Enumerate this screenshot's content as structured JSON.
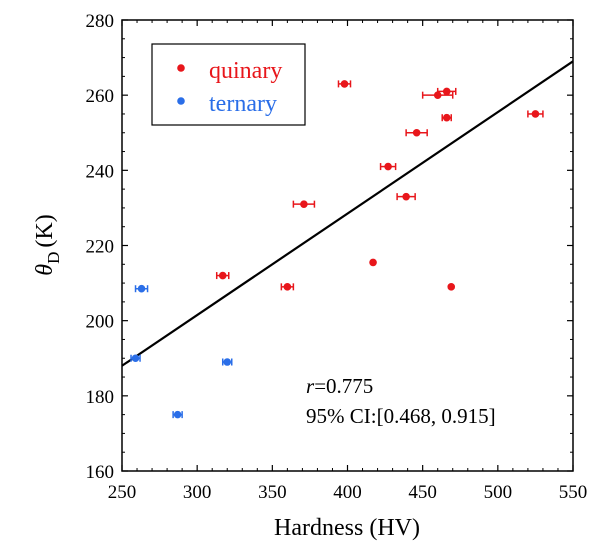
{
  "chart_data": {
    "type": "scatter",
    "xlabel": "Hardness (HV)",
    "ylabel_symbol": "θ",
    "ylabel_subscript": "D",
    "ylabel_unit": "(K)",
    "xlim": [
      250,
      550
    ],
    "ylim": [
      160,
      280
    ],
    "xticks": [
      250,
      300,
      350,
      400,
      450,
      500,
      550
    ],
    "yticks": [
      160,
      180,
      200,
      220,
      240,
      260,
      280
    ],
    "legend_position": "top-left",
    "series": [
      {
        "name": "quinary",
        "color": "#e8161b",
        "points": [
          {
            "x": 317,
            "y": 212,
            "xerr": 4
          },
          {
            "x": 360,
            "y": 209,
            "xerr": 4
          },
          {
            "x": 371,
            "y": 231,
            "xerr": 7
          },
          {
            "x": 398,
            "y": 263,
            "xerr": 4
          },
          {
            "x": 417,
            "y": 215.5,
            "xerr": 0
          },
          {
            "x": 427,
            "y": 241,
            "xerr": 5
          },
          {
            "x": 439,
            "y": 233,
            "xerr": 6
          },
          {
            "x": 446,
            "y": 250,
            "xerr": 7
          },
          {
            "x": 460,
            "y": 260,
            "xerr": 10
          },
          {
            "x": 466,
            "y": 261,
            "xerr": 6
          },
          {
            "x": 466,
            "y": 254,
            "xerr": 3
          },
          {
            "x": 469,
            "y": 209,
            "xerr": 0
          },
          {
            "x": 525,
            "y": 255,
            "xerr": 5
          }
        ]
      },
      {
        "name": "ternary",
        "color": "#2a6ee8",
        "points": [
          {
            "x": 259,
            "y": 190,
            "xerr": 3
          },
          {
            "x": 263,
            "y": 208.5,
            "xerr": 4
          },
          {
            "x": 287,
            "y": 175,
            "xerr": 3
          },
          {
            "x": 320,
            "y": 189,
            "xerr": 3
          }
        ]
      }
    ],
    "fit_line": {
      "x": [
        250,
        550
      ],
      "y": [
        188,
        269
      ],
      "color": "#000000"
    },
    "annotation": {
      "r_symbol": "r",
      "r_value": "=0.775",
      "ci": "95% CI:[0.468, 0.915]"
    }
  }
}
